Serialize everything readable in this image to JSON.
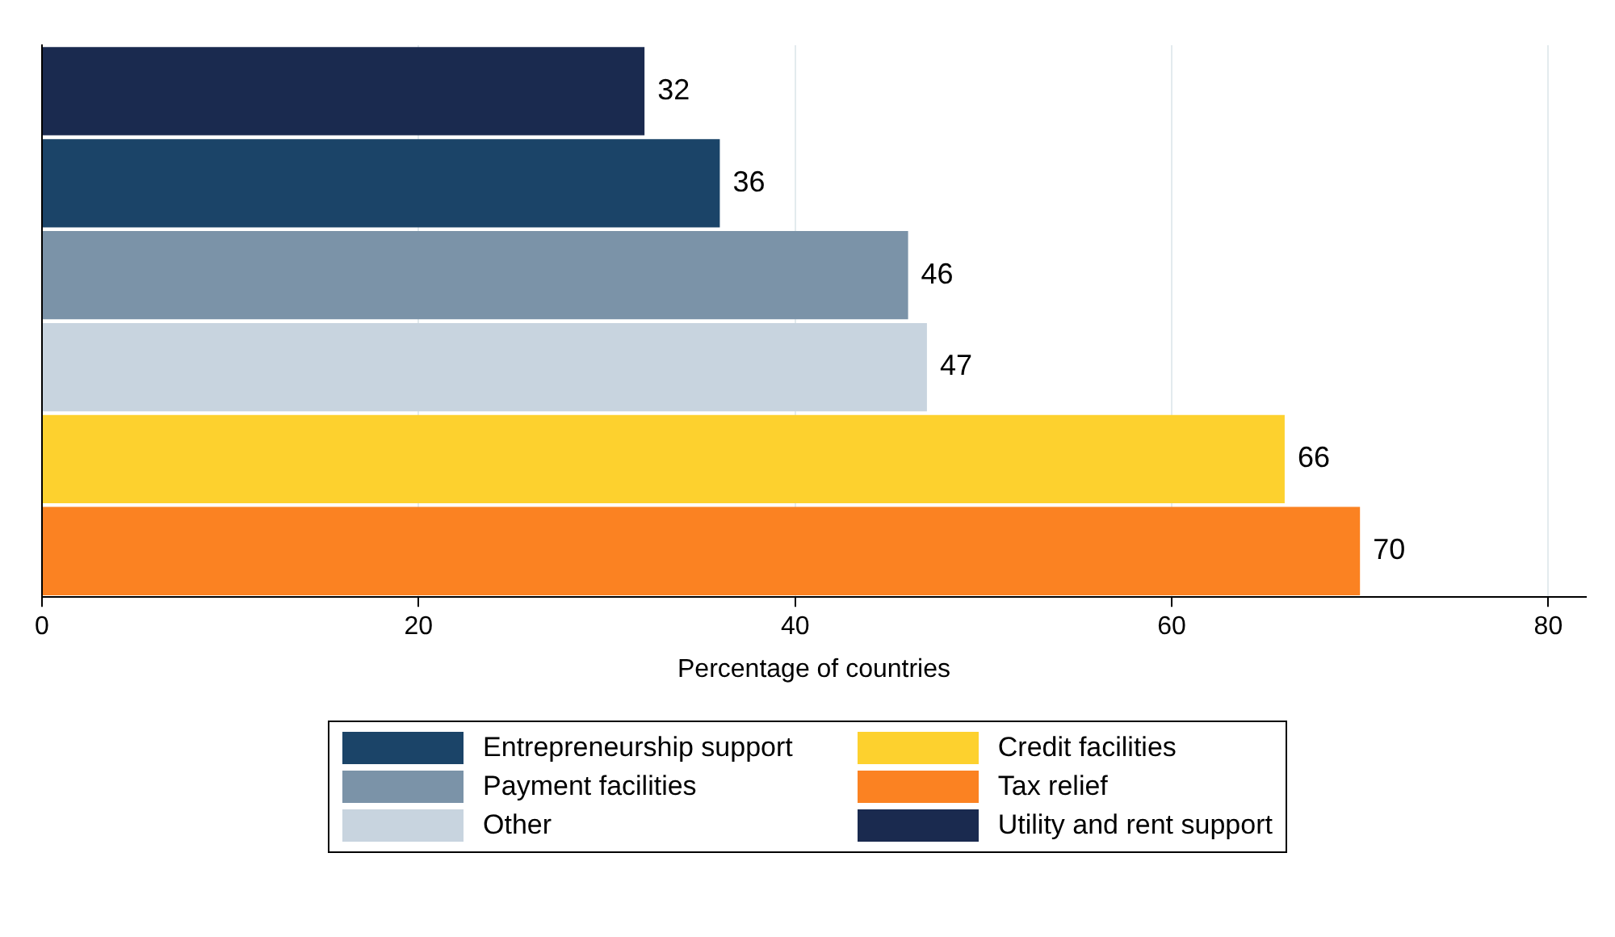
{
  "chart_data": {
    "type": "bar",
    "orientation": "horizontal",
    "xlabel": "Percentage of countries",
    "categories": [
      null,
      null,
      null,
      null,
      null,
      null
    ],
    "series": [
      {
        "name": "Entrepreneurship support",
        "color": "#1b4468",
        "values": [
          null,
          36,
          null,
          null,
          null,
          null
        ]
      },
      {
        "name": "Credit facilities",
        "color": "#fdd12e",
        "values": [
          null,
          null,
          null,
          null,
          66,
          null
        ]
      },
      {
        "name": "Payment facilities",
        "color": "#7b93a8",
        "values": [
          null,
          null,
          46,
          null,
          null,
          null
        ]
      },
      {
        "name": "Tax relief",
        "color": "#fb8222",
        "values": [
          null,
          null,
          null,
          null,
          null,
          70
        ]
      },
      {
        "name": "Other",
        "color": "#c8d4df",
        "values": [
          null,
          null,
          null,
          47,
          null,
          null
        ]
      },
      {
        "name": "Utility and rent support",
        "color": "#1a2a4f",
        "values": [
          32,
          null,
          null,
          null,
          null,
          null
        ]
      }
    ],
    "xlim": [
      0,
      82
    ],
    "xticks": [
      0,
      20,
      40,
      60,
      80
    ],
    "grid": "x",
    "legend": "bottom",
    "tick_labels": "x",
    "data_labels": true
  }
}
